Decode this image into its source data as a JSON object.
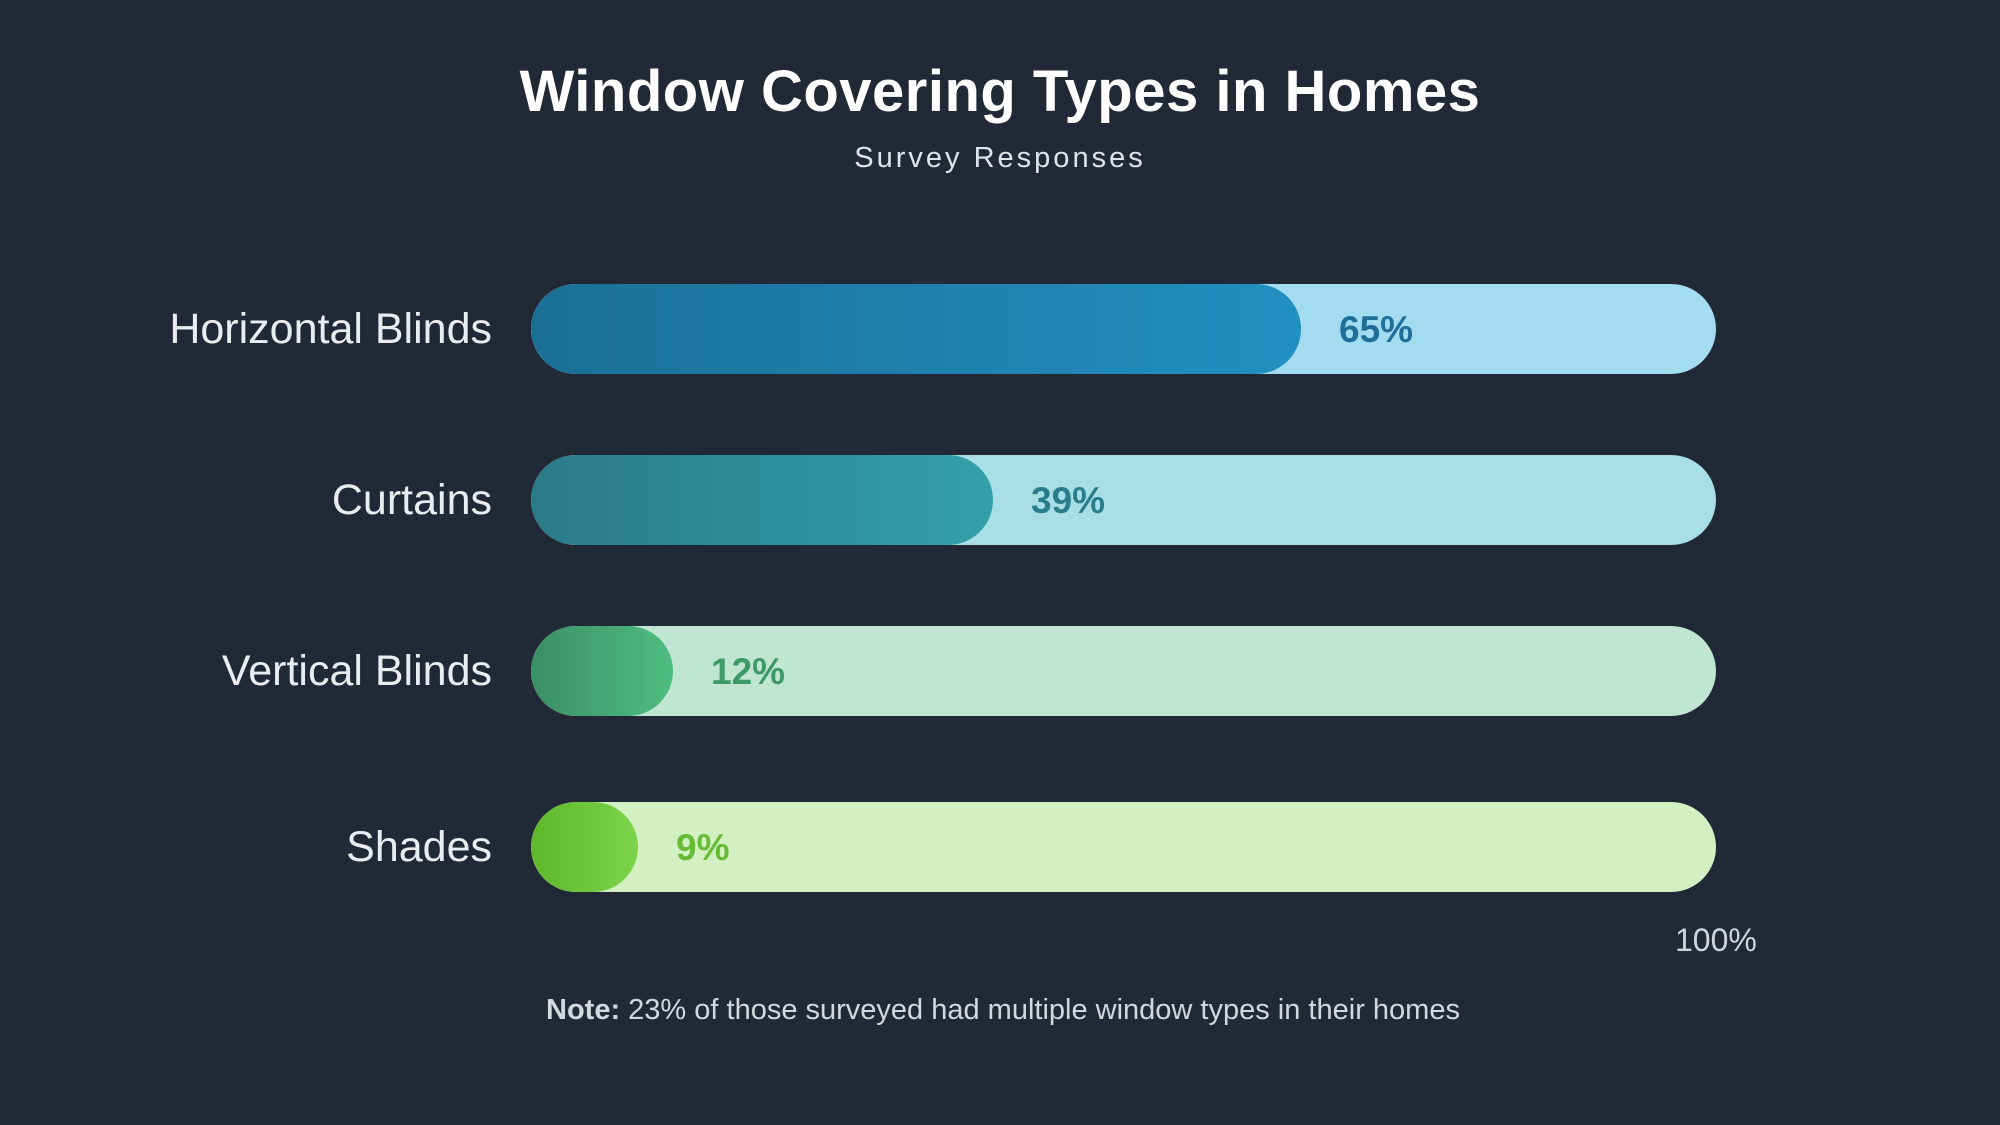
{
  "chart_data": {
    "type": "bar",
    "orientation": "horizontal",
    "title": "Window Covering Types in Homes",
    "subtitle": "Survey Responses",
    "categories": [
      "Horizontal Blinds",
      "Curtains",
      "Vertical Blinds",
      "Shades"
    ],
    "values": [
      65,
      39,
      12,
      9
    ],
    "value_labels": [
      "65%",
      "39%",
      "12%",
      "9%"
    ],
    "xlim": [
      0,
      100
    ],
    "axis_max_label": "100%",
    "grid": false,
    "legend": "none",
    "colors": {
      "fill_start": [
        "#1b6f96",
        "#2a7a88",
        "#3a8f66",
        "#5eb82a"
      ],
      "fill_end": [
        "#2190c2",
        "#33a0ab",
        "#4fbd7f",
        "#7cd44a"
      ],
      "track": [
        "#a3dcf0",
        "#a8dee5",
        "#c0e6d3",
        "#d3f0c2"
      ],
      "value_text": [
        "#1f6f99",
        "#2a7d8a",
        "#3d9a66",
        "#66bb34"
      ]
    }
  },
  "note": {
    "prefix": "Note:",
    "text": " 23% of those surveyed had multiple window types in their homes"
  }
}
